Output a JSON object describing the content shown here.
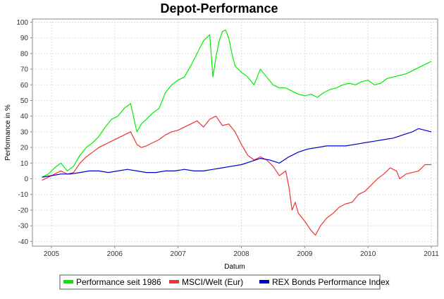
{
  "chart_data": {
    "type": "line",
    "title": "Depot-Performance",
    "xlabel": "Datum",
    "ylabel": "Performance in %",
    "xlim": [
      2004.7,
      2011.1
    ],
    "ylim": [
      -43,
      102
    ],
    "x_ticks": [
      2005,
      2006,
      2007,
      2008,
      2009,
      2010,
      2011
    ],
    "y_ticks": [
      -40,
      -30,
      -20,
      -10,
      0,
      10,
      20,
      30,
      40,
      50,
      60,
      70,
      80,
      90,
      100
    ],
    "grid": true,
    "legend_position": "bottom",
    "series": [
      {
        "name": "Performance seit 1986",
        "color": "#00ee00",
        "x": [
          2004.85,
          2004.95,
          2005.05,
          2005.15,
          2005.25,
          2005.35,
          2005.45,
          2005.55,
          2005.65,
          2005.75,
          2005.85,
          2005.95,
          2006.05,
          2006.15,
          2006.25,
          2006.35,
          2006.42,
          2006.5,
          2006.6,
          2006.7,
          2006.8,
          2006.9,
          2007.0,
          2007.1,
          2007.2,
          2007.3,
          2007.4,
          2007.5,
          2007.55,
          2007.6,
          2007.65,
          2007.7,
          2007.75,
          2007.8,
          2007.85,
          2007.9,
          2008.0,
          2008.1,
          2008.2,
          2008.3,
          2008.4,
          2008.5,
          2008.6,
          2008.7,
          2008.8,
          2008.9,
          2009.0,
          2009.1,
          2009.2,
          2009.3,
          2009.4,
          2009.5,
          2009.6,
          2009.7,
          2009.8,
          2009.9,
          2010.0,
          2010.1,
          2010.2,
          2010.3,
          2010.4,
          2010.5,
          2010.6,
          2010.7,
          2010.8,
          2010.9,
          2011.0
        ],
        "values": [
          1,
          3,
          7,
          10,
          5,
          8,
          15,
          20,
          23,
          27,
          33,
          38,
          40,
          45,
          48,
          30,
          35,
          38,
          42,
          45,
          55,
          60,
          63,
          65,
          72,
          80,
          88,
          92,
          65,
          78,
          88,
          94,
          95,
          90,
          80,
          72,
          68,
          65,
          60,
          70,
          65,
          60,
          58,
          58,
          56,
          54,
          53,
          54,
          52,
          55,
          57,
          58,
          60,
          61,
          60,
          62,
          63,
          60,
          61,
          64,
          65,
          66,
          67,
          69,
          71,
          73,
          75
        ]
      },
      {
        "name": "MSCI/Welt (Eur)",
        "color": "#ee3333",
        "x": [
          2004.85,
          2004.95,
          2005.05,
          2005.15,
          2005.25,
          2005.35,
          2005.45,
          2005.55,
          2005.65,
          2005.75,
          2005.85,
          2005.95,
          2006.05,
          2006.15,
          2006.25,
          2006.35,
          2006.42,
          2006.5,
          2006.6,
          2006.7,
          2006.8,
          2006.9,
          2007.0,
          2007.1,
          2007.2,
          2007.3,
          2007.4,
          2007.5,
          2007.6,
          2007.7,
          2007.8,
          2007.9,
          2008.0,
          2008.1,
          2008.2,
          2008.3,
          2008.4,
          2008.5,
          2008.6,
          2008.7,
          2008.75,
          2008.8,
          2008.85,
          2008.9,
          2009.0,
          2009.1,
          2009.17,
          2009.25,
          2009.35,
          2009.45,
          2009.55,
          2009.65,
          2009.75,
          2009.85,
          2009.95,
          2010.05,
          2010.15,
          2010.25,
          2010.35,
          2010.45,
          2010.5,
          2010.6,
          2010.7,
          2010.8,
          2010.9,
          2011.0
        ],
        "values": [
          -1,
          1,
          3,
          5,
          3,
          4,
          10,
          14,
          17,
          20,
          22,
          24,
          26,
          28,
          30,
          22,
          20,
          21,
          23,
          25,
          28,
          30,
          31,
          33,
          35,
          37,
          33,
          38,
          40,
          34,
          35,
          30,
          22,
          15,
          12,
          14,
          12,
          8,
          2,
          5,
          -5,
          -20,
          -15,
          -22,
          -27,
          -33,
          -36,
          -30,
          -25,
          -22,
          -18,
          -16,
          -15,
          -10,
          -8,
          -4,
          0,
          3,
          7,
          5,
          0,
          3,
          4,
          5,
          9,
          9
        ]
      },
      {
        "name": "REX Bonds Performance Index",
        "color": "#0000cc",
        "x": [
          2004.85,
          2005.0,
          2005.15,
          2005.3,
          2005.45,
          2005.6,
          2005.75,
          2005.9,
          2006.05,
          2006.2,
          2006.35,
          2006.5,
          2006.65,
          2006.8,
          2006.95,
          2007.1,
          2007.25,
          2007.4,
          2007.55,
          2007.7,
          2007.85,
          2008.0,
          2008.15,
          2008.3,
          2008.45,
          2008.6,
          2008.75,
          2008.9,
          2009.05,
          2009.2,
          2009.35,
          2009.5,
          2009.65,
          2009.8,
          2009.95,
          2010.1,
          2010.25,
          2010.4,
          2010.55,
          2010.7,
          2010.8,
          2010.9,
          2011.0
        ],
        "values": [
          1,
          2,
          3,
          3,
          4,
          5,
          5,
          4,
          5,
          6,
          5,
          4,
          4,
          5,
          5,
          6,
          5,
          5,
          6,
          7,
          8,
          9,
          11,
          13,
          12,
          10,
          14,
          17,
          19,
          20,
          21,
          21,
          21,
          22,
          23,
          24,
          25,
          26,
          28,
          30,
          32,
          31,
          30
        ]
      }
    ]
  }
}
